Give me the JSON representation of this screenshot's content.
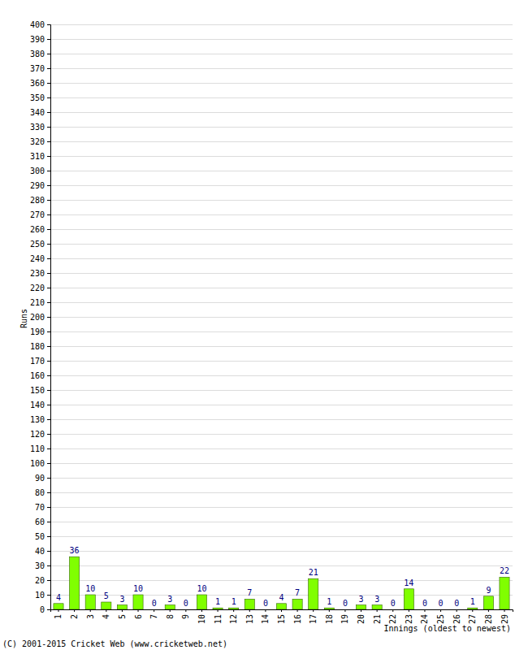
{
  "chart_data": {
    "type": "bar",
    "x_label": "Innings (oldest to newest)",
    "y_label": "Runs",
    "annotations": [
      "(C) 2001-2015 Cricket Web (www.cricketweb.net)"
    ],
    "categories": [
      "1",
      "2",
      "3",
      "4",
      "5",
      "6",
      "7",
      "8",
      "9",
      "10",
      "11",
      "12",
      "13",
      "14",
      "15",
      "16",
      "17",
      "18",
      "19",
      "20",
      "21",
      "22",
      "23",
      "24",
      "25",
      "26",
      "27",
      "28",
      "29"
    ],
    "values": [
      4,
      36,
      10,
      5,
      3,
      10,
      0,
      3,
      0,
      10,
      1,
      1,
      7,
      0,
      4,
      7,
      21,
      1,
      0,
      3,
      3,
      0,
      14,
      0,
      0,
      0,
      1,
      9,
      22
    ],
    "color": "#80ff00",
    "ylim": [
      0,
      400
    ],
    "yticks": [
      0,
      10,
      20,
      30,
      40,
      50,
      60,
      70,
      80,
      90,
      100,
      110,
      120,
      130,
      140,
      150,
      160,
      170,
      180,
      190,
      200,
      210,
      220,
      230,
      240,
      250,
      260,
      270,
      280,
      290,
      300,
      310,
      320,
      330,
      340,
      350,
      360,
      370,
      380,
      390,
      400
    ],
    "grid": true,
    "data_labels": true
  }
}
